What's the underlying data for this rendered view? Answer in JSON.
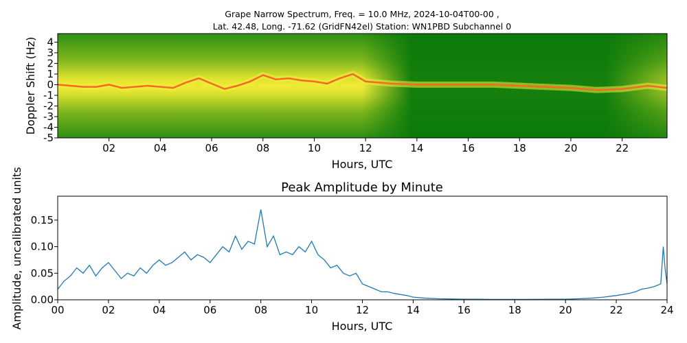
{
  "figure": {
    "title_line1": "Grape Narrow Spectrum, Freq. = 10.0 MHz, 2024-10-04T00-00 ,",
    "title_line2": "Lat.  42.48, Long. -71.62 (GridFN42el) Station: WN1PBD Subchannel 0"
  },
  "colors": {
    "spectrogram_low": "#0a7a0a",
    "spectrogram_mid": "#8fc21c",
    "spectrogram_high": "#f2ef34",
    "spectrogram_peak": "#f5682a",
    "line": "#1f77b4"
  },
  "chart_data": [
    {
      "type": "heatmap",
      "xlabel": "Hours, UTC",
      "ylabel": "Doppler Shift (Hz)",
      "xlim": [
        0,
        23.75
      ],
      "ylim": [
        -5,
        4.8
      ],
      "x_ticks": [
        2,
        4,
        6,
        8,
        10,
        12,
        14,
        16,
        18,
        20,
        22
      ],
      "x_tick_labels": [
        "02",
        "04",
        "06",
        "08",
        "10",
        "12",
        "14",
        "16",
        "18",
        "20",
        "22"
      ],
      "y_ticks": [
        4,
        3,
        2,
        1,
        0,
        -1,
        -2,
        -3,
        -4,
        -5
      ],
      "y_tick_labels": [
        "4",
        "3",
        "2",
        "1",
        "0",
        "-1",
        "-2",
        "-3",
        "-4",
        "-5"
      ],
      "peak_doppler_trace": {
        "x": [
          0,
          0.5,
          1,
          1.5,
          2,
          2.5,
          3,
          3.5,
          4,
          4.5,
          5,
          5.5,
          6,
          6.5,
          7,
          7.5,
          8,
          8.5,
          9,
          9.5,
          10,
          10.5,
          11,
          11.5,
          12,
          13,
          14,
          15,
          16,
          17,
          18,
          19,
          20,
          21,
          22,
          23,
          23.75
        ],
        "y": [
          0,
          -0.1,
          -0.2,
          -0.2,
          0.0,
          -0.3,
          -0.2,
          -0.1,
          -0.2,
          -0.3,
          0.2,
          0.6,
          0.1,
          -0.4,
          -0.1,
          0.3,
          0.9,
          0.5,
          0.6,
          0.4,
          0.3,
          0.1,
          0.6,
          1.0,
          0.3,
          0.1,
          0.0,
          0.0,
          0.0,
          0.0,
          -0.1,
          -0.2,
          -0.3,
          -0.5,
          -0.4,
          -0.1,
          -0.3
        ]
      }
    },
    {
      "type": "line",
      "title": "Peak Amplitude by Minute",
      "xlabel": "Hours, UTC",
      "ylabel": "Amplitude, uncalibrated units",
      "xlim": [
        0,
        24
      ],
      "ylim": [
        0,
        0.195
      ],
      "x_ticks": [
        0,
        2,
        4,
        6,
        8,
        10,
        12,
        14,
        16,
        18,
        20,
        22,
        24
      ],
      "x_tick_labels": [
        "00",
        "02",
        "04",
        "06",
        "08",
        "10",
        "12",
        "14",
        "16",
        "18",
        "20",
        "22",
        "24"
      ],
      "y_ticks": [
        0,
        0.05,
        0.1,
        0.15
      ],
      "y_tick_labels": [
        "0.00",
        "0.05",
        "0.10",
        "0.15"
      ],
      "series": [
        {
          "x": [
            0,
            0.25,
            0.5,
            0.75,
            1,
            1.25,
            1.5,
            1.75,
            2,
            2.25,
            2.5,
            2.75,
            3,
            3.25,
            3.5,
            3.75,
            4,
            4.25,
            4.5,
            4.75,
            5,
            5.25,
            5.5,
            5.75,
            6,
            6.25,
            6.5,
            6.75,
            7,
            7.25,
            7.5,
            7.75,
            8,
            8.25,
            8.5,
            8.75,
            9,
            9.25,
            9.5,
            9.75,
            10,
            10.25,
            10.5,
            10.75,
            11,
            11.25,
            11.5,
            11.75,
            12,
            12.25,
            12.5,
            12.75,
            13,
            13.25,
            13.5,
            13.75,
            14,
            14.5,
            15,
            15.5,
            16,
            16.5,
            17,
            17.5,
            18,
            18.5,
            19,
            19.5,
            20,
            20.5,
            21,
            21.5,
            22,
            22.25,
            22.5,
            22.75,
            23,
            23.25,
            23.5,
            23.75,
            23.85,
            23.92,
            24
          ],
          "y": [
            0.02,
            0.035,
            0.045,
            0.06,
            0.05,
            0.065,
            0.045,
            0.06,
            0.07,
            0.055,
            0.04,
            0.05,
            0.045,
            0.06,
            0.05,
            0.065,
            0.075,
            0.065,
            0.07,
            0.08,
            0.09,
            0.075,
            0.085,
            0.08,
            0.07,
            0.085,
            0.1,
            0.09,
            0.12,
            0.095,
            0.11,
            0.105,
            0.17,
            0.1,
            0.12,
            0.085,
            0.09,
            0.085,
            0.1,
            0.09,
            0.11,
            0.085,
            0.075,
            0.06,
            0.065,
            0.05,
            0.045,
            0.05,
            0.03,
            0.025,
            0.02,
            0.015,
            0.015,
            0.012,
            0.01,
            0.008,
            0.005,
            0.003,
            0.002,
            0.0015,
            0.001,
            0.001,
            0.0008,
            0.0008,
            0.0008,
            0.0008,
            0.0009,
            0.001,
            0.001,
            0.002,
            0.003,
            0.005,
            0.008,
            0.01,
            0.012,
            0.015,
            0.02,
            0.022,
            0.025,
            0.03,
            0.1,
            0.06,
            0.03
          ]
        }
      ]
    }
  ]
}
